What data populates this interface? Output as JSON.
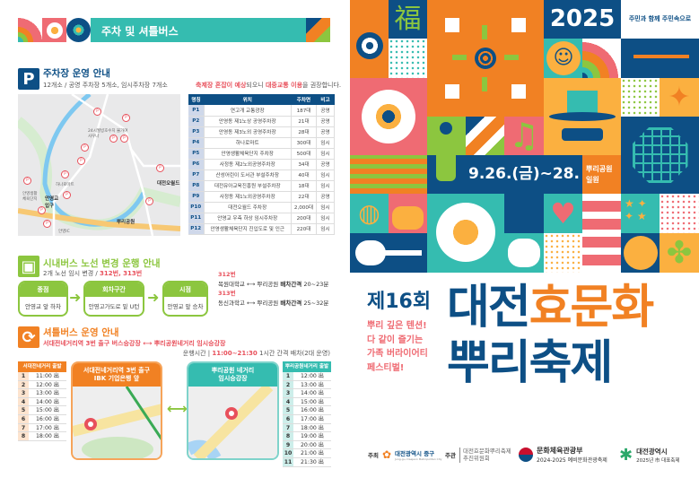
{
  "banner": {
    "title": "주차 및 셔틀버스"
  },
  "parking": {
    "icon": "parking-icon",
    "icon_label": "P",
    "title": "주차장 운영 안내",
    "subtitle": "12개소 / 공영 주차장 5개소, 임시주차장 7개소",
    "notice": [
      "축제장 혼잡이 예상",
      "되오니 ",
      "대중교통 이용",
      "을 권장합니다."
    ],
    "map_labels": [
      "24시월빙호수치 불가여사우나",
      "하나로마트",
      "안영생활 체육단지",
      "안영교 입구",
      "대전오월드",
      "뿌리공원",
      "안영IC"
    ],
    "columns": [
      "명칭",
      "위치",
      "주차면",
      "비고"
    ],
    "rows": [
      [
        "P1",
        "연고개 교통광장",
        "187대",
        "공영"
      ],
      [
        "P2",
        "안영동 제1노상 공영주차장",
        "21대",
        "공영"
      ],
      [
        "P3",
        "안영동 제3노외 공영주차장",
        "28대",
        "공영"
      ],
      [
        "P4",
        "하나로마트",
        "300대",
        "임시"
      ],
      [
        "P5",
        "안영생활체육단지 주차장",
        "500대",
        "임시"
      ],
      [
        "P6",
        "사정동 제2노외공영주차장",
        "34대",
        "공영"
      ],
      [
        "P7",
        "산성어린이 도서관 부설주차장",
        "40대",
        "임시"
      ],
      [
        "P8",
        "대전유아교육진흥원 부설주차장",
        "18대",
        "임시"
      ],
      [
        "P9",
        "사정동 제1노외공영주차장",
        "22대",
        "공영"
      ],
      [
        "P10",
        "대전오월드 주차장",
        "2,000대",
        "임시"
      ],
      [
        "P11",
        "안영교 우측 하상 임시주차장",
        "200대",
        "임시"
      ],
      [
        "P12",
        "안영생활체육단지 진입도로 및 인근",
        "220대",
        "임시"
      ]
    ]
  },
  "citybus": {
    "title": "시내버스 노선 변경 운행 안내",
    "subtitle_prefix": "2개 노선 임시 변경 / ",
    "subtitle_routes": "312번, 313번",
    "steps": [
      {
        "head": "종점",
        "body": "안영교 앞 하차"
      },
      {
        "head": "회차구간",
        "body": "안영고가도로 밑 U턴"
      },
      {
        "head": "시점",
        "body": "안영교 앞 승차"
      }
    ],
    "routes": [
      {
        "no": "312번",
        "from": "목원대학교",
        "to": "뿌리공원",
        "interval_label": "배차간격",
        "interval": "20~23분"
      },
      {
        "no": "313번",
        "from": "동신과학고",
        "to": "뿌리공원",
        "interval_label": "배차간격",
        "interval": "25~32분"
      }
    ]
  },
  "shuttle": {
    "title": "셔틀버스 운영 안내",
    "route": "서대전네거리역 3번 출구 버스승강장 ⟷ 뿌리공원네거리 임시승강장",
    "hours_label": "운행시간 | ",
    "hours": "11:00~21:30",
    "hours_note": " 1시간 간격 배차(2대 운영)",
    "left": {
      "header": "서대전네거리 출발",
      "card": "서대전네거리역 3번 출구\nIBK 기업은행 앞",
      "times": [
        "11:00 出",
        "12:00 出",
        "13:00 出",
        "14:00 出",
        "15:00 出",
        "16:00 出",
        "17:00 出",
        "18:00 出"
      ]
    },
    "right": {
      "header": "뿌리공원네거리 출발",
      "card": "뿌리공원 네거리\n임시승강장",
      "times": [
        "12:00 出",
        "13:00 出",
        "14:00 出",
        "15:00 出",
        "16:00 出",
        "17:00 出",
        "18:00 出",
        "19:00 出",
        "20:00 出",
        "21:00 出",
        "21:30 出"
      ]
    }
  },
  "poster": {
    "year": "2025",
    "slogan": "주민과 함께 주민속으로",
    "date": "9.26.(금)~28.(일)",
    "venue": "뿌리공원 일원",
    "edition": "제16회",
    "title_a": "대전",
    "title_b": "효문화",
    "title_c": "뿌리축제",
    "tagline": [
      "뿌리 깊은 텐션!",
      "다 같이 즐기는",
      "가족 버라이어티",
      "페스티벌!"
    ]
  },
  "footer": {
    "host_label": "주최",
    "host": "대전광역시 중구",
    "host_en": "Jung-gu, Daejeon Metropolitan City",
    "organizer_label": "주관",
    "organizer": [
      "대전효문화뿌리축제",
      "추진위원회"
    ],
    "ministry": "문화체육관광부",
    "ministry_sub": "2024-2025 예비문화관광축제",
    "city": "대전광역시",
    "city_sub": "2025년 市 대표축제"
  },
  "colors": {
    "navy": "#0d4f85",
    "orange": "#f18123",
    "teal": "#35bcb0",
    "green": "#8cc63f",
    "pink": "#ef6b73",
    "amber": "#fbb040",
    "red": "#e8505b"
  }
}
